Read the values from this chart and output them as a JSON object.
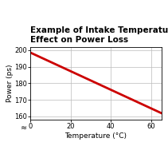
{
  "title_line1": "Example of Intake Temperature’s",
  "title_line2": "Effect on Power Loss",
  "xlabel": "Temperature (°C)",
  "ylabel": "Power (ps)",
  "x_data": [
    0,
    65
  ],
  "y_data": [
    198.5,
    162
  ],
  "xlim": [
    0,
    65
  ],
  "ylim": [
    158,
    202
  ],
  "xticks": [
    0,
    20,
    40,
    60
  ],
  "yticks": [
    160,
    170,
    180,
    190,
    200
  ],
  "line_color": "#cc0000",
  "line_width": 2.0,
  "grid_color": "#bbbbbb",
  "title_fontsize": 7.5,
  "axis_label_fontsize": 6.5,
  "tick_fontsize": 6.0,
  "bg_color": "#ffffff"
}
